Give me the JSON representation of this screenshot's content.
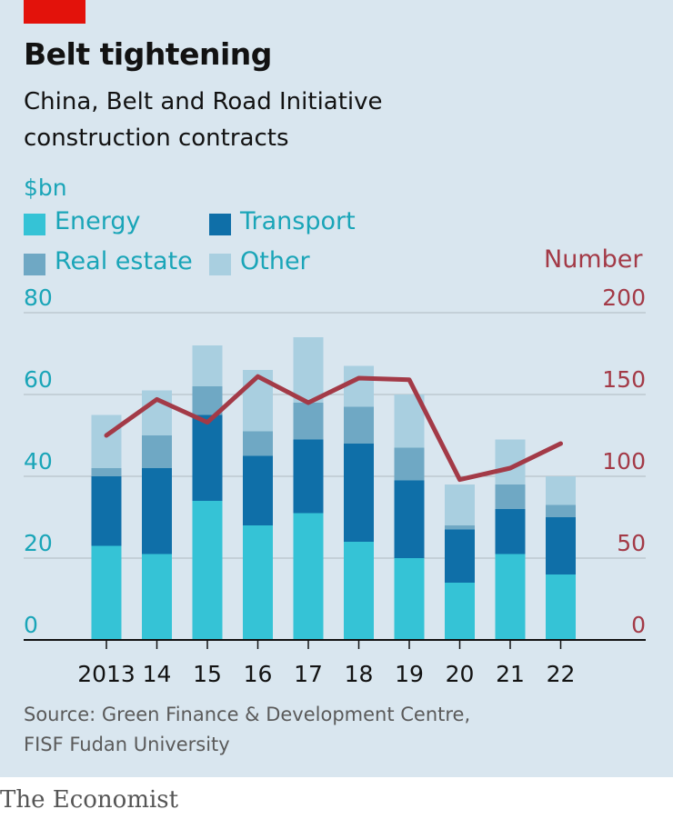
{
  "header": {
    "title": "Belt tightening",
    "subtitle": "China, Belt and Road Initiative construction contracts"
  },
  "legend": {
    "unit_left": "$bn",
    "unit_right": "Number",
    "items": [
      {
        "label": "Energy",
        "color": "#35c3d6"
      },
      {
        "label": "Transport",
        "color": "#0f6fa8"
      },
      {
        "label": "Real estate",
        "color": "#6fa8c4"
      },
      {
        "label": "Other",
        "color": "#a9cfe0"
      }
    ]
  },
  "chart_data": {
    "type": "bar",
    "stacked": true,
    "title": "Belt tightening",
    "categories": [
      "2013",
      "14",
      "15",
      "16",
      "17",
      "18",
      "19",
      "20",
      "21",
      "22"
    ],
    "series": [
      {
        "name": "Energy",
        "values": [
          23,
          21,
          34,
          28,
          31,
          24,
          20,
          14,
          21,
          16
        ]
      },
      {
        "name": "Transport",
        "values": [
          17,
          21,
          21,
          17,
          18,
          24,
          19,
          13,
          11,
          14
        ]
      },
      {
        "name": "Real estate",
        "values": [
          2,
          8,
          7,
          6,
          9,
          9,
          8,
          1,
          6,
          3
        ]
      },
      {
        "name": "Other",
        "values": [
          13,
          11,
          10,
          15,
          16,
          10,
          13,
          10,
          11,
          7
        ]
      }
    ],
    "line_series": {
      "name": "Number",
      "axis": "right",
      "color": "#a33a47",
      "values": [
        125,
        147,
        133,
        161,
        145,
        160,
        159,
        98,
        105,
        120
      ]
    },
    "ylim_left": [
      0,
      80
    ],
    "yticks_left": [
      "0",
      "20",
      "40",
      "60",
      "80"
    ],
    "ylim_right": [
      0,
      200
    ],
    "yticks_right": [
      "0",
      "50",
      "100",
      "150",
      "200"
    ],
    "left_tick_color": "#1aa5b8",
    "right_tick_color": "#a33a47"
  },
  "footer": {
    "source": "Source: Green Finance & Development Centre, FISF Fudan University",
    "brand": "The Economist"
  }
}
